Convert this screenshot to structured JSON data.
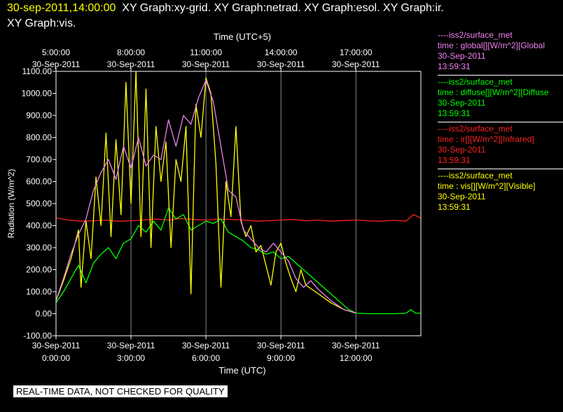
{
  "header": {
    "timestamp": "30-sep-2011,14:00:00",
    "graphs_line1": "XY Graph:xy-grid.  XY Graph:netrad.  XY Graph:esol.  XY Graph:ir.",
    "graphs_line2": "XY Graph:vis."
  },
  "notice": "REAL-TIME DATA, NOT CHECKED FOR QUALITY",
  "legend": [
    {
      "source": "----iss2/surface_met",
      "field": "time : global[][W/m^2][Global",
      "date": "30-Sep-2011",
      "time": "13:59:31",
      "color": "#ee82ee"
    },
    {
      "source": "----iss2/surface_met",
      "field": "time : diffuse[][W/m^2][Diffuse",
      "date": "30-Sep-2011",
      "time": "13:59:31",
      "color": "#00ff00"
    },
    {
      "source": "----iss2/surface_met",
      "field": "time : ir[][W/m^2][Infrared]",
      "date": "30-Sep-2011",
      "time": "13:59:31",
      "color": "#ff2020"
    },
    {
      "source": "----iss2/surface_met",
      "field": "time : vis[][W/m^2][Visible]",
      "date": "30-Sep-2011",
      "time": "13:59:31",
      "color": "#ffff00"
    }
  ],
  "chart_data": {
    "type": "line",
    "ylabel": "Radiation (W/m^2)",
    "xlabel_bottom": "Time (UTC)",
    "xlabel_top": "Time (UTC+5)",
    "ylim": [
      -100,
      1100
    ],
    "xlim": [
      0,
      14.6
    ],
    "grid": true,
    "yticks": [
      "-100.00",
      "0.00",
      "100.00",
      "200.00",
      "300.00",
      "400.00",
      "500.00",
      "600.00",
      "700.00",
      "800.00",
      "900.00",
      "1000.00",
      "1100.00"
    ],
    "xticks_bottom": [
      {
        "x": 0,
        "date": "30-Sep-2011",
        "time": "0:00:00"
      },
      {
        "x": 3,
        "date": "30-Sep-2011",
        "time": "3:00:00"
      },
      {
        "x": 6,
        "date": "30-Sep-2011",
        "time": "6:00:00"
      },
      {
        "x": 9,
        "date": "30-Sep-2011",
        "time": "9:00:00"
      },
      {
        "x": 12,
        "date": "30-Sep-2011",
        "time": "12:00:00"
      }
    ],
    "xticks_top": [
      {
        "x": 0,
        "time": "5:00:00",
        "date": "30-Sep-2011"
      },
      {
        "x": 3,
        "time": "8:00:00",
        "date": "30-Sep-2011"
      },
      {
        "x": 6,
        "time": "11:00:00",
        "date": "30-Sep-2011"
      },
      {
        "x": 9,
        "time": "14:00:00",
        "date": "30-Sep-2011"
      },
      {
        "x": 12,
        "time": "17:00:00",
        "date": "30-Sep-2011"
      }
    ],
    "series": [
      {
        "color": "#ff2020",
        "x": [
          0,
          0.5,
          1.0,
          1.5,
          2.0,
          2.5,
          3.0,
          3.5,
          4.0,
          4.5,
          5.0,
          5.5,
          6.0,
          6.5,
          7.0,
          7.5,
          8.0,
          8.5,
          9.0,
          9.5,
          10.0,
          10.5,
          11.0,
          11.5,
          12.0,
          12.5,
          13.0,
          13.5,
          14.0,
          14.3,
          14.5,
          14.6
        ],
        "y": [
          435,
          425,
          420,
          422,
          425,
          420,
          422,
          425,
          430,
          425,
          432,
          428,
          425,
          430,
          428,
          425,
          420,
          422,
          425,
          428,
          422,
          425,
          420,
          423,
          425,
          422,
          420,
          424,
          420,
          450,
          440,
          435
        ]
      },
      {
        "color": "#00ff00",
        "x": [
          0,
          0.3,
          0.6,
          0.9,
          1.2,
          1.5,
          1.8,
          2.1,
          2.4,
          2.7,
          3.0,
          3.3,
          3.6,
          3.9,
          4.2,
          4.5,
          4.8,
          5.1,
          5.4,
          5.7,
          6.0,
          6.3,
          6.6,
          6.9,
          7.2,
          7.5,
          7.8,
          8.1,
          8.4,
          8.7,
          9.0,
          9.3,
          9.6,
          9.9,
          10.2,
          10.5,
          10.8,
          11.1,
          11.4,
          11.7,
          12.0,
          12.5,
          13.0,
          13.5,
          14.0,
          14.2,
          14.4,
          14.6
        ],
        "y": [
          50,
          100,
          160,
          220,
          140,
          230,
          270,
          300,
          250,
          320,
          340,
          400,
          370,
          420,
          380,
          480,
          430,
          450,
          380,
          400,
          420,
          410,
          430,
          370,
          350,
          330,
          300,
          290,
          270,
          280,
          250,
          260,
          230,
          200,
          170,
          140,
          110,
          80,
          50,
          20,
          3,
          0,
          0,
          0,
          2,
          18,
          2,
          3
        ]
      },
      {
        "color": "#ffff00",
        "x": [
          0,
          0.3,
          0.6,
          0.9,
          1.0,
          1.2,
          1.4,
          1.6,
          1.8,
          2.0,
          2.2,
          2.4,
          2.6,
          2.8,
          3.0,
          3.2,
          3.4,
          3.6,
          3.8,
          4.0,
          4.2,
          4.4,
          4.6,
          4.8,
          5.0,
          5.2,
          5.4,
          5.6,
          5.8,
          6.0,
          6.2,
          6.4,
          6.6,
          6.8,
          7.0,
          7.2,
          7.4,
          7.6,
          7.8,
          8.0,
          8.2,
          8.4,
          8.6,
          8.8,
          9.0,
          9.2,
          9.4,
          9.6,
          9.8,
          10.0,
          10.5,
          11.0,
          11.5,
          12.0
        ],
        "y": [
          60,
          150,
          250,
          380,
          120,
          420,
          250,
          620,
          400,
          820,
          350,
          790,
          450,
          1050,
          500,
          1100,
          350,
          1020,
          300,
          850,
          600,
          780,
          300,
          700,
          600,
          850,
          90,
          950,
          800,
          1070,
          1000,
          680,
          120,
          600,
          440,
          850,
          420,
          350,
          400,
          280,
          310,
          220,
          130,
          280,
          320,
          230,
          160,
          100,
          200,
          130,
          90,
          50,
          20,
          3
        ]
      },
      {
        "color": "#ee82ee",
        "x": [
          0,
          0.3,
          0.6,
          0.9,
          1.2,
          1.5,
          1.8,
          2.1,
          2.4,
          2.7,
          3.0,
          3.3,
          3.6,
          3.9,
          4.2,
          4.5,
          4.8,
          5.1,
          5.4,
          5.7,
          6.0,
          6.3,
          6.6,
          6.9,
          7.2,
          7.5,
          7.8,
          8.1,
          8.4,
          8.7,
          9.0,
          9.3,
          9.6,
          9.9,
          10.2,
          10.5,
          11.0,
          11.5,
          12.0
        ],
        "y": [
          60,
          160,
          270,
          360,
          430,
          560,
          640,
          700,
          610,
          760,
          660,
          800,
          670,
          720,
          700,
          880,
          760,
          900,
          860,
          980,
          1060,
          960,
          760,
          560,
          530,
          380,
          340,
          300,
          280,
          320,
          280,
          240,
          160,
          120,
          150,
          110,
          60,
          20,
          3
        ]
      }
    ]
  }
}
